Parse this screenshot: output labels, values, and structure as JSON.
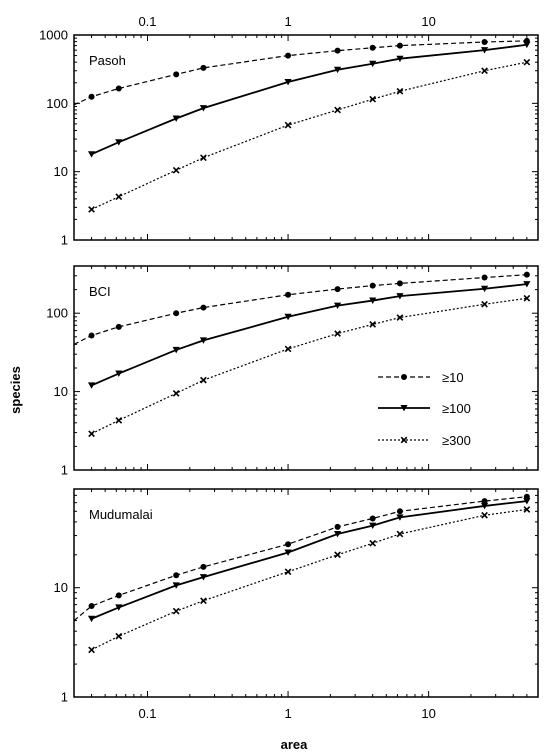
{
  "chart_data": {
    "type": "line",
    "xlabel": "area",
    "ylabel": "species",
    "x_scale": "log",
    "y_scale": "log",
    "xlim": [
      0.03,
      60
    ],
    "x_ticks": [
      {
        "value": 0.1,
        "label": "0.1"
      },
      {
        "value": 1,
        "label": "1"
      },
      {
        "value": 10,
        "label": "10"
      }
    ],
    "x": [
      0.04,
      0.0625,
      0.16,
      0.25,
      1,
      2.25,
      4,
      6.25,
      25,
      50
    ],
    "legend": {
      "placement": "inside middle panel, right",
      "entries": [
        {
          "label": "≥10",
          "series": 0
        },
        {
          "label": "≥100",
          "series": 1
        },
        {
          "label": "≥300",
          "series": 2
        }
      ]
    },
    "series_styles": [
      {
        "marker": "circle",
        "line": "dashed",
        "color": "#000000"
      },
      {
        "marker": "triangle-down",
        "line": "solid",
        "color": "#000000"
      },
      {
        "marker": "x",
        "line": "dotted",
        "color": "#000000"
      }
    ],
    "panels": [
      {
        "title": "Pasoh",
        "ylim": [
          1,
          1000
        ],
        "y_ticks": [
          {
            "value": 1,
            "label": "1"
          },
          {
            "value": 10,
            "label": "10"
          },
          {
            "value": 100,
            "label": "100"
          },
          {
            "value": 1000,
            "label": "1000"
          }
        ],
        "series": [
          {
            "values": [
              125,
              165,
              265,
              330,
              500,
              590,
              650,
              700,
              790,
              820
            ],
            "extend_left_to": 95
          },
          {
            "values": [
              18,
              27,
              60,
              85,
              205,
              310,
              380,
              450,
              600,
              720
            ]
          },
          {
            "values": [
              2.8,
              4.3,
              10.5,
              16,
              48,
              80,
              115,
              150,
              300,
              400
            ]
          }
        ]
      },
      {
        "title": "BCI",
        "ylim": [
          1,
          400
        ],
        "y_ticks": [
          {
            "value": 1,
            "label": "1"
          },
          {
            "value": 10,
            "label": "10"
          },
          {
            "value": 100,
            "label": "100"
          }
        ],
        "series": [
          {
            "values": [
              52,
              67,
              100,
              118,
              172,
              203,
              225,
              240,
              285,
              310
            ],
            "extend_left_to": 40
          },
          {
            "values": [
              12,
              17,
              34,
              45,
              90,
              125,
              145,
              165,
              205,
              235
            ]
          },
          {
            "values": [
              2.9,
              4.3,
              9.5,
              14,
              35,
              55,
              72,
              88,
              130,
              155
            ]
          }
        ]
      },
      {
        "title": "Mudumalai",
        "ylim": [
          1,
          80
        ],
        "y_ticks": [
          {
            "value": 1,
            "label": "1"
          },
          {
            "value": 10,
            "label": "10"
          }
        ],
        "series": [
          {
            "values": [
              6.8,
              8.5,
              13,
              15.5,
              25,
              36,
              43,
              50,
              62,
              68
            ],
            "extend_left_to": 5
          },
          {
            "values": [
              5.2,
              6.6,
              10.5,
              12.5,
              21,
              31,
              37,
              44,
              56,
              62
            ]
          },
          {
            "values": [
              2.7,
              3.6,
              6.1,
              7.6,
              14,
              20,
              25.5,
              31,
              46,
              52
            ]
          }
        ]
      }
    ]
  }
}
